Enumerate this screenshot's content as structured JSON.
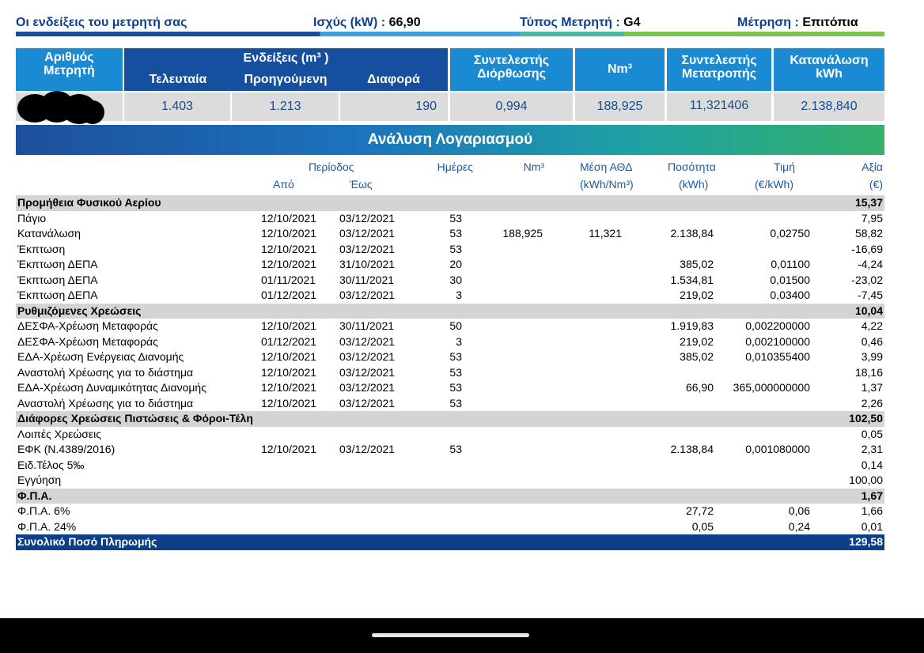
{
  "header": {
    "title": "Οι ενδείξεις του μετρητή σας",
    "power_label": "Ισχύς (kW) :",
    "power_value": "66,90",
    "meter_type_label": "Τύπος Μετρητή :",
    "meter_type_value": "G4",
    "measurement_label": "Μέτρηση :",
    "measurement_value": "Επιτόπια"
  },
  "meter_table": {
    "meter_no_header": [
      "Αριθμός",
      "Μετρητή"
    ],
    "readings_header": "Ενδείξεις (m³ )",
    "last_header": "Τελευταία",
    "previous_header": "Προηγούμενη",
    "difference_header": "Διαφορά",
    "correction_header": [
      "Συντελεστής",
      "Διόρθωσης"
    ],
    "nm3_header": "Nm³",
    "conversion_header": [
      "Συντελεστής",
      "Μετατροπής"
    ],
    "consumption_header": [
      "Κατανάλωση",
      "kWh"
    ],
    "values": {
      "last": "1.403",
      "previous": "1.213",
      "difference": "190",
      "correction": "0,994",
      "nm3": "188,925",
      "conversion": "11,321406",
      "consumption": "2.138,840"
    }
  },
  "analysis": {
    "title": "Ανάλυση Λογαριασμού",
    "columns": {
      "period": "Περίοδος",
      "from": "Από",
      "to": "Έως",
      "days": "Ημέρες",
      "nm3": "Nm³",
      "avg": "Μέση ΑΘΔ",
      "avg_unit": "(kWh/Nm³)",
      "qty": "Ποσότητα",
      "qty_unit": "(kWh)",
      "price": "Τιμή",
      "price_unit": "(€/kWh)",
      "value": "Αξία",
      "value_unit": "(€)"
    },
    "rows": [
      {
        "type": "sec",
        "label": "Προμήθεια Φυσικού Αερίου",
        "from": "",
        "to": "",
        "days": "",
        "nm3": "",
        "avg": "",
        "qty": "",
        "price": "",
        "value": "15,37"
      },
      {
        "type": "row",
        "label": "Πάγιο",
        "from": "12/10/2021",
        "to": "03/12/2021",
        "days": "53",
        "nm3": "",
        "avg": "",
        "qty": "",
        "price": "",
        "value": "7,95"
      },
      {
        "type": "row",
        "label": "Κατανάλωση",
        "from": "12/10/2021",
        "to": "03/12/2021",
        "days": "53",
        "nm3": "188,925",
        "avg": "11,321",
        "qty": "2.138,84",
        "price": "0,02750",
        "value": "58,82"
      },
      {
        "type": "row",
        "label": "Έκπτωση",
        "from": "12/10/2021",
        "to": "03/12/2021",
        "days": "53",
        "nm3": "",
        "avg": "",
        "qty": "",
        "price": "",
        "value": "-16,69"
      },
      {
        "type": "row",
        "label": "Έκπτωση ΔΕΠΑ",
        "from": "12/10/2021",
        "to": "31/10/2021",
        "days": "20",
        "nm3": "",
        "avg": "",
        "qty": "385,02",
        "price": "0,01100",
        "value": "-4,24"
      },
      {
        "type": "row",
        "label": "Έκπτωση ΔΕΠΑ",
        "from": "01/11/2021",
        "to": "30/11/2021",
        "days": "30",
        "nm3": "",
        "avg": "",
        "qty": "1.534,81",
        "price": "0,01500",
        "value": "-23,02"
      },
      {
        "type": "row",
        "label": "Έκπτωση ΔΕΠΑ",
        "from": "01/12/2021",
        "to": "03/12/2021",
        "days": "3",
        "nm3": "",
        "avg": "",
        "qty": "219,02",
        "price": "0,03400",
        "value": "-7,45"
      },
      {
        "type": "sec",
        "label": "Ρυθμιζόμενες Χρεώσεις",
        "from": "",
        "to": "",
        "days": "",
        "nm3": "",
        "avg": "",
        "qty": "",
        "price": "",
        "value": "10,04"
      },
      {
        "type": "row",
        "label": "ΔΕΣΦΑ-Χρέωση Μεταφοράς",
        "from": "12/10/2021",
        "to": "30/11/2021",
        "days": "50",
        "nm3": "",
        "avg": "",
        "qty": "1.919,83",
        "price": "0,002200000",
        "value": "4,22"
      },
      {
        "type": "row",
        "label": "ΔΕΣΦΑ-Χρέωση Μεταφοράς",
        "from": "01/12/2021",
        "to": "03/12/2021",
        "days": "3",
        "nm3": "",
        "avg": "",
        "qty": "219,02",
        "price": "0,002100000",
        "value": "0,46"
      },
      {
        "type": "row",
        "label": "ΕΔΑ-Χρέωση Ενέργειας Διανομής",
        "from": "12/10/2021",
        "to": "03/12/2021",
        "days": "53",
        "nm3": "",
        "avg": "",
        "qty": "385,02",
        "price": "0,010355400",
        "value": "3,99"
      },
      {
        "type": "row",
        "label": "Αναστολή Χρέωσης για το διάστημα",
        "from": "12/10/2021",
        "to": "03/12/2021",
        "days": "53",
        "nm3": "",
        "avg": "",
        "qty": "",
        "price": "",
        "value": "18,16"
      },
      {
        "type": "row",
        "label": "ΕΔΑ-Χρέωση Δυναμικότητας Διανομής",
        "from": "12/10/2021",
        "to": "03/12/2021",
        "days": "53",
        "nm3": "",
        "avg": "",
        "qty": "66,90",
        "price": "365,000000000",
        "value": "1,37"
      },
      {
        "type": "row",
        "label": "Αναστολή Χρέωσης για το διάστημα",
        "from": "12/10/2021",
        "to": "03/12/2021",
        "days": "53",
        "nm3": "",
        "avg": "",
        "qty": "",
        "price": "",
        "value": "2,26"
      },
      {
        "type": "sec",
        "label": "Διάφορες Χρεώσεις Πιστώσεις & Φόροι-Τέλη",
        "from": "",
        "to": "",
        "days": "",
        "nm3": "",
        "avg": "",
        "qty": "",
        "price": "",
        "value": "102,50"
      },
      {
        "type": "row",
        "label": "Λοιπές Χρεώσεις",
        "from": "",
        "to": "",
        "days": "",
        "nm3": "",
        "avg": "",
        "qty": "",
        "price": "",
        "value": "0,05"
      },
      {
        "type": "row",
        "label": "ΕΦΚ (Ν.4389/2016)",
        "from": "12/10/2021",
        "to": "03/12/2021",
        "days": "53",
        "nm3": "",
        "avg": "",
        "qty": "2.138,84",
        "price": "0,001080000",
        "value": "2,31"
      },
      {
        "type": "row",
        "label": "Ειδ.Τέλος 5‰",
        "from": "",
        "to": "",
        "days": "",
        "nm3": "",
        "avg": "",
        "qty": "",
        "price": "",
        "value": "0,14"
      },
      {
        "type": "row",
        "label": "Εγγύηση",
        "from": "",
        "to": "",
        "days": "",
        "nm3": "",
        "avg": "",
        "qty": "",
        "price": "",
        "value": "100,00"
      },
      {
        "type": "sec",
        "label": "Φ.Π.Α.",
        "from": "",
        "to": "",
        "days": "",
        "nm3": "",
        "avg": "",
        "qty": "",
        "price": "",
        "value": "1,67"
      },
      {
        "type": "row",
        "label": "Φ.Π.Α. 6%",
        "from": "",
        "to": "",
        "days": "",
        "nm3": "",
        "avg": "",
        "qty": "27,72",
        "price": "0,06",
        "value": "1,66"
      },
      {
        "type": "row",
        "label": "Φ.Π.Α. 24%",
        "from": "",
        "to": "",
        "days": "",
        "nm3": "",
        "avg": "",
        "qty": "0,05",
        "price": "0,24",
        "value": "0,01"
      },
      {
        "type": "total",
        "label": "Συνολικό Ποσό Πληρωμής",
        "from": "",
        "to": "",
        "days": "",
        "nm3": "",
        "avg": "",
        "qty": "",
        "price": "",
        "value": "129,58"
      }
    ]
  },
  "colors": {
    "header_blue": "#0d3f8f",
    "table_header_blue": "#1a8ad2",
    "readings_blue": "#164f9e",
    "total_bar": "#0c3f86",
    "section_gray": "#d4d4d4"
  }
}
